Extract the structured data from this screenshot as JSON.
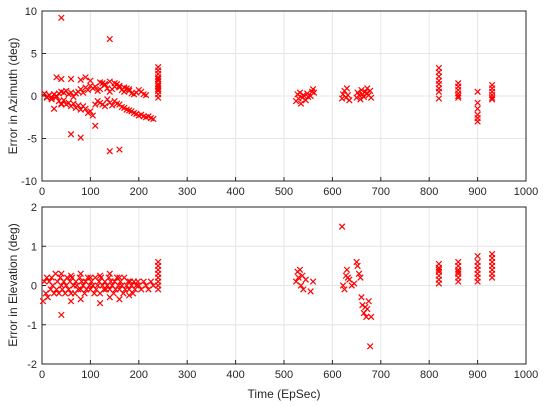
{
  "colors": {
    "marker": "#ff0000"
  },
  "chart_data": [
    {
      "type": "scatter",
      "title": "",
      "xlabel": "",
      "ylabel": "Error in Azimuth (deg)",
      "xlim": [
        0,
        1000
      ],
      "ylim": [
        -10,
        10
      ],
      "xticks": [
        0,
        100,
        200,
        300,
        400,
        500,
        600,
        700,
        800,
        900,
        1000
      ],
      "yticks": [
        -10,
        -5,
        0,
        5,
        10
      ],
      "grid": true,
      "marker": "x",
      "series": [
        {
          "x": [
            5,
            10,
            15,
            20,
            25,
            30,
            35,
            40,
            45,
            50,
            55,
            60,
            65,
            70,
            75,
            80,
            85,
            90,
            95,
            100,
            105,
            110,
            115,
            120,
            125,
            130,
            135,
            140,
            145,
            150,
            155,
            160,
            165,
            170,
            175,
            180,
            185,
            190,
            195,
            200,
            205,
            210,
            215,
            220,
            225,
            230,
            10,
            15,
            20,
            25,
            30,
            35,
            40,
            45,
            50,
            55,
            60,
            65,
            70,
            75,
            80,
            85,
            90,
            95,
            100,
            105,
            110,
            115,
            120,
            125,
            130,
            135,
            140,
            145,
            150,
            155,
            160,
            165,
            170,
            175,
            180,
            185,
            190,
            195,
            200,
            205,
            210,
            215,
            30,
            40,
            60,
            80,
            90,
            100,
            120,
            130,
            140,
            150,
            160,
            170,
            180,
            25,
            40,
            60,
            80,
            110,
            140,
            160,
            40,
            140,
            240,
            240,
            240,
            240,
            240,
            240,
            240,
            240,
            240,
            240,
            240,
            240,
            240,
            525,
            528,
            530,
            533,
            535,
            538,
            540,
            545,
            548,
            550,
            555,
            558,
            560,
            562,
            620,
            622,
            625,
            628,
            630,
            632,
            635,
            650,
            652,
            655,
            658,
            660,
            662,
            665,
            668,
            670,
            672,
            675,
            678,
            680,
            820,
            820,
            820,
            820,
            820,
            820,
            820,
            820,
            860,
            860,
            860,
            860,
            860,
            860,
            900,
            900,
            900,
            900,
            900,
            900,
            930,
            930,
            930,
            930,
            930,
            930
          ],
          "y": [
            0.3,
            -0.2,
            0.1,
            -0.4,
            0.2,
            0,
            -0.6,
            -0.9,
            -0.5,
            -1.0,
            -0.8,
            -1.2,
            -0.9,
            -1.4,
            -1.1,
            -1.6,
            -1.2,
            -1.5,
            -2.0,
            -1.8,
            -2.3,
            -1.0,
            -0.6,
            -0.8,
            -1.0,
            -1.2,
            -0.4,
            -0.8,
            -1.1,
            -0.6,
            -0.9,
            -1.0,
            -1.3,
            -1.4,
            -1.6,
            -1.7,
            -1.8,
            -2.0,
            -2.1,
            -2.3,
            -2.2,
            -2.4,
            -2.5,
            -2.4,
            -2.6,
            -2.7,
            -0.1,
            0.1,
            -0.2,
            0.2,
            -0.1,
            0.3,
            0.5,
            0.4,
            0.6,
            0.2,
            0.4,
            -0.1,
            0.3,
            0.5,
            0.8,
            0.4,
            1.0,
            0.7,
            1.2,
            0.9,
            1.1,
            0.6,
            0.8,
            1.5,
            1.3,
            0.9,
            0.5,
            0.8,
            1.1,
            1.4,
            1.0,
            0.7,
            0.5,
            0.9,
            0.6,
            0.3,
            0.2,
            0.4,
            0.7,
            0.5,
            0.2,
            0.1,
            2.2,
            2.0,
            2.0,
            1.9,
            2.2,
            1.8,
            1.6,
            1.4,
            1.7,
            1.5,
            1.2,
            1.0,
            0.8,
            -1.5,
            -1.0,
            -4.5,
            -4.9,
            -3.5,
            -6.5,
            -6.3,
            9.2,
            6.7,
            0.2,
            0.6,
            1.0,
            1.4,
            1.8,
            2.2,
            2.6,
            3.0,
            3.4,
            -0.2,
            0.8,
            1.2,
            2.0,
            -0.6,
            0.2,
            -0.3,
            0.4,
            -0.9,
            -0.2,
            0.1,
            -0.5,
            0.3,
            -0.1,
            0.0,
            0.5,
            0.8,
            0.4,
            -0.3,
            0.2,
            0.6,
            -0.2,
            0.9,
            0.1,
            -0.5,
            -0.2,
            0.4,
            0.1,
            -0.4,
            0.7,
            0.2,
            -0.1,
            0.5,
            0.3,
            0.9,
            0.1,
            0.6,
            -0.2,
            3.3,
            2.8,
            2.3,
            1.8,
            1.4,
            0.9,
            0.5,
            -0.3,
            1.5,
            1.1,
            0.7,
            0.3,
            0.0,
            -0.2,
            0.5,
            -0.8,
            -1.5,
            -2.2,
            -2.6,
            -3.0,
            1.3,
            0.9,
            0.5,
            0.1,
            -0.2,
            -0.4
          ]
        }
      ]
    },
    {
      "type": "scatter",
      "title": "",
      "xlabel": "Time (EpSec)",
      "ylabel": "Error in Elevation (deg)",
      "xlim": [
        0,
        1000
      ],
      "ylim": [
        -2,
        2
      ],
      "xticks": [
        0,
        100,
        200,
        300,
        400,
        500,
        600,
        700,
        800,
        900,
        1000
      ],
      "yticks": [
        -2,
        -1,
        0,
        1,
        2
      ],
      "grid": true,
      "marker": "x",
      "series": [
        {
          "x": [
            2,
            5,
            8,
            10,
            12,
            15,
            18,
            20,
            22,
            25,
            28,
            30,
            32,
            35,
            38,
            40,
            42,
            45,
            48,
            50,
            52,
            55,
            58,
            60,
            62,
            65,
            68,
            70,
            72,
            75,
            78,
            80,
            82,
            85,
            88,
            90,
            92,
            95,
            98,
            100,
            102,
            105,
            108,
            110,
            112,
            115,
            118,
            120,
            122,
            125,
            128,
            130,
            132,
            135,
            138,
            140,
            142,
            145,
            148,
            150,
            152,
            155,
            158,
            160,
            162,
            165,
            168,
            170,
            172,
            175,
            178,
            180,
            182,
            185,
            188,
            190,
            192,
            195,
            198,
            200,
            205,
            210,
            215,
            220,
            225,
            230,
            40,
            60,
            80,
            100,
            120,
            140,
            160,
            40,
            60,
            80,
            120,
            140,
            160,
            180,
            240,
            240,
            240,
            240,
            240,
            240,
            240,
            240,
            525,
            528,
            530,
            533,
            535,
            538,
            540,
            545,
            555,
            560,
            620,
            622,
            625,
            628,
            630,
            632,
            635,
            640,
            645,
            650,
            652,
            655,
            658,
            660,
            662,
            665,
            668,
            670,
            672,
            675,
            678,
            680,
            820,
            820,
            820,
            820,
            820,
            820,
            820,
            860,
            860,
            860,
            860,
            860,
            860,
            860,
            900,
            900,
            900,
            900,
            900,
            900,
            900,
            930,
            930,
            930,
            930,
            930,
            930,
            930
          ],
          "y": [
            -0.4,
            0.1,
            -0.2,
            0.2,
            -0.3,
            0.1,
            -0.1,
            0.2,
            0.0,
            -0.2,
            0.3,
            -0.1,
            0.1,
            -0.2,
            0.2,
            0.0,
            -0.1,
            0.1,
            -0.2,
            0.0,
            0.2,
            -0.1,
            0.1,
            -0.2,
            0.2,
            0.0,
            -0.2,
            0.1,
            0.0,
            -0.1,
            0.2,
            -0.1,
            0.1,
            0.0,
            -0.2,
            0.1,
            -0.1,
            0.2,
            0.0,
            -0.1,
            0.1,
            0.0,
            -0.2,
            0.2,
            -0.1,
            0.0,
            0.1,
            -0.2,
            0.2,
            0.0,
            -0.1,
            0.1,
            -0.1,
            0.0,
            0.2,
            -0.1,
            0.1,
            0.0,
            -0.2,
            0.1,
            -0.1,
            0.2,
            0.0,
            -0.1,
            0.1,
            0.0,
            -0.2,
            0.2,
            -0.1,
            0.0,
            0.1,
            -0.1,
            0.1,
            0.0,
            -0.2,
            0.1,
            -0.1,
            0.0,
            0.1,
            0.0,
            -0.1,
            0.1,
            0.0,
            -0.1,
            0.1,
            0.0,
            0.3,
            0.25,
            0.3,
            0.2,
            0.25,
            0.3,
            0.2,
            -0.75,
            -0.4,
            -0.35,
            -0.45,
            -0.3,
            -0.35,
            -0.25,
            0.6,
            0.5,
            0.4,
            0.3,
            0.2,
            0.1,
            0.0,
            -0.1,
            0.1,
            0.35,
            0.2,
            0.4,
            0.0,
            0.25,
            -0.1,
            0.15,
            -0.15,
            0.1,
            1.5,
            0.0,
            -0.1,
            0.25,
            0.4,
            0.2,
            0.15,
            0.0,
            0.05,
            0.6,
            0.5,
            0.3,
            0.2,
            -0.3,
            -0.5,
            -0.7,
            -0.55,
            -0.8,
            -0.6,
            -0.4,
            -1.55,
            -0.8,
            0.55,
            0.45,
            0.35,
            0.25,
            0.15,
            0.05,
            0.4,
            0.6,
            0.5,
            0.4,
            0.3,
            0.2,
            0.1,
            0.35,
            0.75,
            0.6,
            0.5,
            0.4,
            0.3,
            0.2,
            0.1,
            0.8,
            0.7,
            0.6,
            0.5,
            0.4,
            0.3,
            0.2
          ]
        }
      ]
    }
  ]
}
